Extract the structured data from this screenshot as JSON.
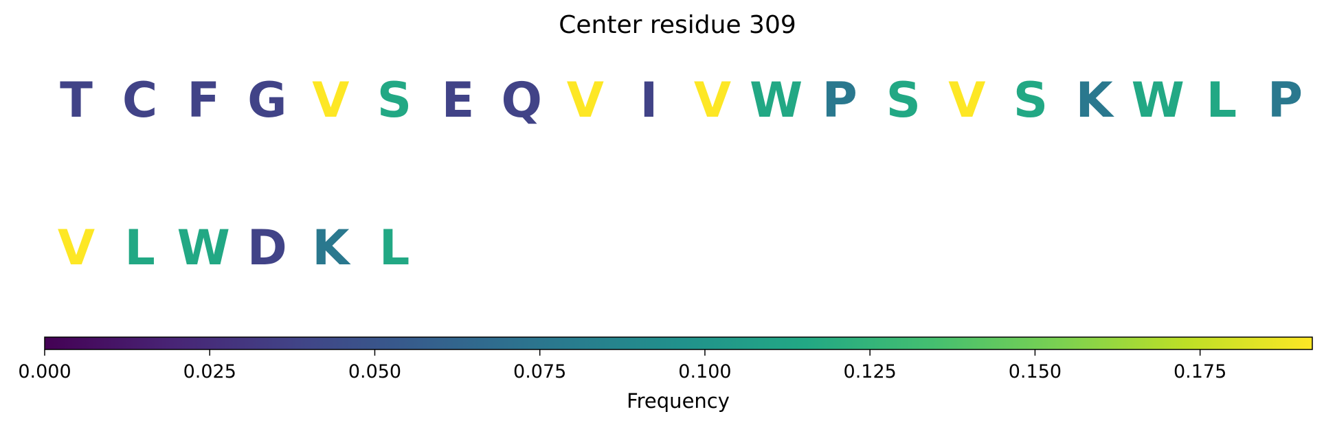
{
  "chart_data": {
    "type": "sequence-frequency-heatmap",
    "title": "Center residue 309",
    "residues": [
      {
        "letter": "T",
        "frequency": 0.038
      },
      {
        "letter": "C",
        "frequency": 0.038
      },
      {
        "letter": "F",
        "frequency": 0.038
      },
      {
        "letter": "G",
        "frequency": 0.038
      },
      {
        "letter": "V",
        "frequency": 0.192
      },
      {
        "letter": "S",
        "frequency": 0.115
      },
      {
        "letter": "E",
        "frequency": 0.038
      },
      {
        "letter": "Q",
        "frequency": 0.038
      },
      {
        "letter": "V",
        "frequency": 0.192
      },
      {
        "letter": "I",
        "frequency": 0.038
      },
      {
        "letter": "V",
        "frequency": 0.192
      },
      {
        "letter": "W",
        "frequency": 0.115
      },
      {
        "letter": "P",
        "frequency": 0.077
      },
      {
        "letter": "S",
        "frequency": 0.115
      },
      {
        "letter": "V",
        "frequency": 0.192
      },
      {
        "letter": "S",
        "frequency": 0.115
      },
      {
        "letter": "K",
        "frequency": 0.077
      },
      {
        "letter": "W",
        "frequency": 0.115
      },
      {
        "letter": "L",
        "frequency": 0.115
      },
      {
        "letter": "P",
        "frequency": 0.077
      },
      {
        "letter": "V",
        "frequency": 0.192
      },
      {
        "letter": "L",
        "frequency": 0.115
      },
      {
        "letter": "W",
        "frequency": 0.115
      },
      {
        "letter": "D",
        "frequency": 0.038
      },
      {
        "letter": "K",
        "frequency": 0.077
      },
      {
        "letter": "L",
        "frequency": 0.115
      }
    ],
    "residues_per_row": 20,
    "colorbar": {
      "label": "Frequency",
      "min": 0.0,
      "max": 0.192,
      "colormap": "viridis",
      "ticks": [
        "0.000",
        "0.025",
        "0.050",
        "0.075",
        "0.100",
        "0.125",
        "0.150",
        "0.175"
      ]
    }
  }
}
